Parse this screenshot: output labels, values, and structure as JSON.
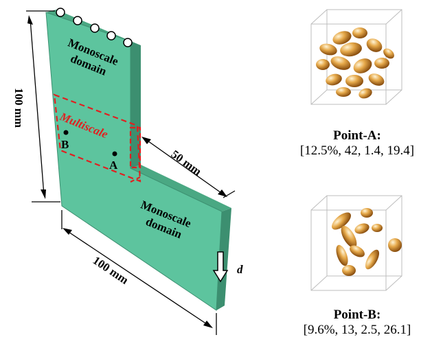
{
  "specimen": {
    "top_region_label_line1": "Monoscale",
    "top_region_label_line2": "domain",
    "bottom_region_label_line1": "Monoscale",
    "bottom_region_label_line2": "domain",
    "multiscale_label": "Multiscale",
    "point_a_label": "A",
    "point_b_label": "B",
    "dim_height": "100 mm",
    "dim_notch": "50 mm",
    "dim_width": "100 mm",
    "load_label": "d",
    "face_color": "#5dc49e",
    "edge_color": "#3c8f70",
    "multiscale_color": "#e02020"
  },
  "points": [
    {
      "title": "Point-A:",
      "values": "[12.5%, 42, 1.4, 19.4]"
    },
    {
      "title": "Point-B:",
      "values": "[9.6%, 13, 2.5, 26.1]"
    }
  ],
  "inclusion_color": "#d9922e"
}
